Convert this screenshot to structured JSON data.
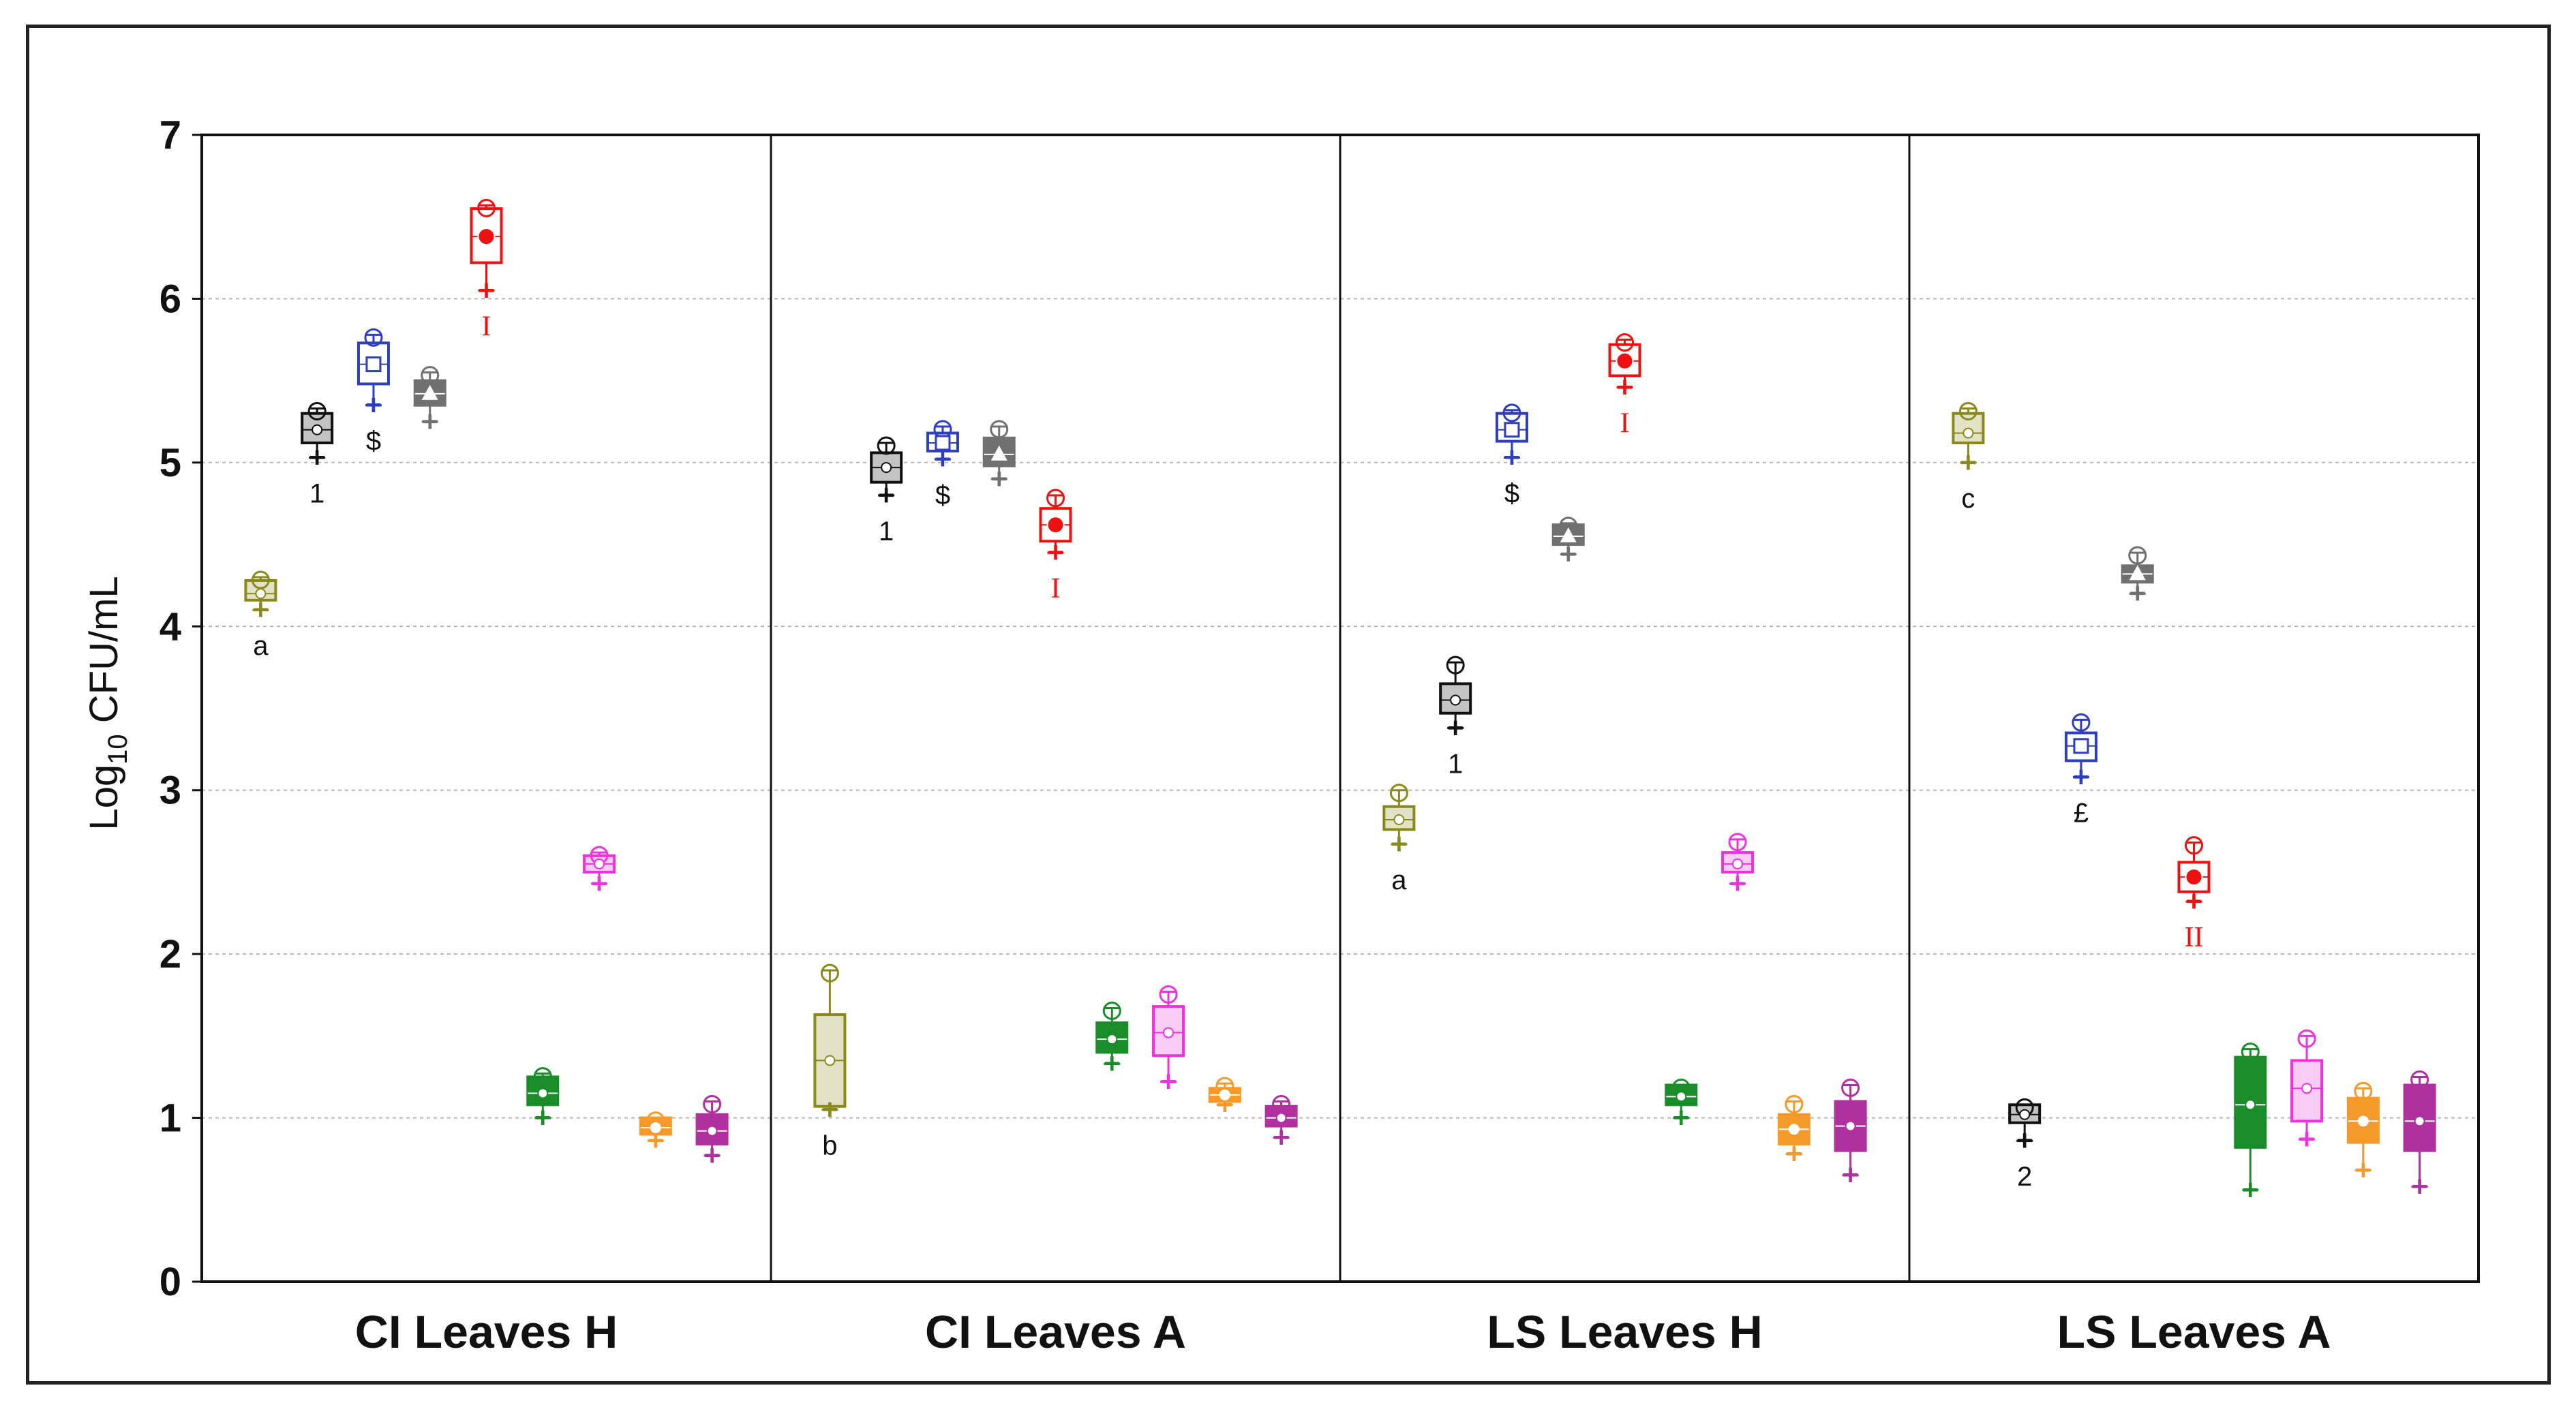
{
  "chart_data": {
    "type": "box",
    "ylabel": {
      "prefix": "Log",
      "sub": "10",
      "suffix": " CFU/mL"
    },
    "ylim": [
      0,
      7
    ],
    "yticks": [
      "0",
      "1",
      "2",
      "3",
      "4",
      "5",
      "6",
      "7"
    ],
    "grid": true,
    "colors": [
      "#8a8a1a",
      "#111111",
      "#2f3dbf",
      "#707070",
      "#ee1111",
      "#1a8c2a",
      "#ee33dd",
      "#f59a2a",
      "#b0309f"
    ],
    "panels": [
      {
        "name": "CI Leaves H",
        "boxes": [
          {
            "median": 4.2,
            "q1": 4.16,
            "q3": 4.28,
            "mean": 4.2,
            "min": 4.1,
            "max": 4.3,
            "label": "a"
          },
          {
            "median": 5.2,
            "q1": 5.12,
            "q3": 5.3,
            "mean": 5.2,
            "min": 5.03,
            "max": 5.33,
            "label": "1"
          },
          {
            "median": 5.6,
            "q1": 5.48,
            "q3": 5.73,
            "mean": 5.6,
            "min": 5.35,
            "max": 5.78,
            "label": "$"
          },
          {
            "median": 5.42,
            "q1": 5.35,
            "q3": 5.5,
            "mean": 5.42,
            "min": 5.25,
            "max": 5.55,
            "label": ""
          },
          {
            "median": 6.38,
            "q1": 6.22,
            "q3": 6.55,
            "mean": 6.38,
            "min": 6.05,
            "max": 6.57,
            "label": "I"
          },
          {
            "median": 1.15,
            "q1": 1.08,
            "q3": 1.25,
            "mean": 1.15,
            "min": 1.0,
            "max": 1.27,
            "label": ""
          },
          {
            "median": 2.55,
            "q1": 2.5,
            "q3": 2.6,
            "mean": 2.55,
            "min": 2.43,
            "max": 2.62,
            "label": ""
          },
          {
            "median": 0.94,
            "q1": 0.9,
            "q3": 1.0,
            "mean": 0.94,
            "min": 0.86,
            "max": 1.0,
            "label": ""
          },
          {
            "median": 0.92,
            "q1": 0.84,
            "q3": 1.02,
            "mean": 0.92,
            "min": 0.77,
            "max": 1.1,
            "label": ""
          }
        ]
      },
      {
        "name": "CI Leaves A",
        "boxes": [
          {
            "median": 1.35,
            "q1": 1.07,
            "q3": 1.63,
            "mean": 1.35,
            "min": 1.05,
            "max": 1.9,
            "label": "b"
          },
          {
            "median": 4.97,
            "q1": 4.88,
            "q3": 5.06,
            "mean": 4.97,
            "min": 4.8,
            "max": 5.12,
            "label": "1"
          },
          {
            "median": 5.12,
            "q1": 5.07,
            "q3": 5.18,
            "mean": 5.12,
            "min": 5.02,
            "max": 5.22,
            "label": "$"
          },
          {
            "median": 5.05,
            "q1": 4.98,
            "q3": 5.15,
            "mean": 5.05,
            "min": 4.9,
            "max": 5.22,
            "label": ""
          },
          {
            "median": 4.62,
            "q1": 4.52,
            "q3": 4.72,
            "mean": 4.62,
            "min": 4.45,
            "max": 4.8,
            "label": "I"
          },
          {
            "median": 1.48,
            "q1": 1.4,
            "q3": 1.58,
            "mean": 1.48,
            "min": 1.33,
            "max": 1.67,
            "label": ""
          },
          {
            "median": 1.52,
            "q1": 1.38,
            "q3": 1.68,
            "mean": 1.52,
            "min": 1.22,
            "max": 1.77,
            "label": ""
          },
          {
            "median": 1.14,
            "q1": 1.1,
            "q3": 1.18,
            "mean": 1.14,
            "min": 1.08,
            "max": 1.21,
            "label": ""
          },
          {
            "median": 1.0,
            "q1": 0.95,
            "q3": 1.07,
            "mean": 1.0,
            "min": 0.88,
            "max": 1.1,
            "label": ""
          }
        ]
      },
      {
        "name": "LS Leaves H",
        "boxes": [
          {
            "median": 2.82,
            "q1": 2.76,
            "q3": 2.9,
            "mean": 2.82,
            "min": 2.67,
            "max": 3.0,
            "label": "a"
          },
          {
            "median": 3.55,
            "q1": 3.47,
            "q3": 3.65,
            "mean": 3.55,
            "min": 3.38,
            "max": 3.78,
            "label": "1"
          },
          {
            "median": 5.2,
            "q1": 5.13,
            "q3": 5.3,
            "mean": 5.2,
            "min": 5.03,
            "max": 5.32,
            "label": "$"
          },
          {
            "median": 4.55,
            "q1": 4.5,
            "q3": 4.62,
            "mean": 4.55,
            "min": 4.44,
            "max": 4.63,
            "label": ""
          },
          {
            "median": 5.62,
            "q1": 5.53,
            "q3": 5.72,
            "mean": 5.62,
            "min": 5.46,
            "max": 5.75,
            "label": "I"
          },
          {
            "median": 1.13,
            "q1": 1.08,
            "q3": 1.2,
            "mean": 1.13,
            "min": 1.0,
            "max": 1.2,
            "label": ""
          },
          {
            "median": 2.55,
            "q1": 2.5,
            "q3": 2.62,
            "mean": 2.55,
            "min": 2.43,
            "max": 2.7,
            "label": ""
          },
          {
            "median": 0.93,
            "q1": 0.84,
            "q3": 1.02,
            "mean": 0.93,
            "min": 0.78,
            "max": 1.1,
            "label": ""
          },
          {
            "median": 0.95,
            "q1": 0.8,
            "q3": 1.1,
            "mean": 0.95,
            "min": 0.65,
            "max": 1.2,
            "label": ""
          }
        ]
      },
      {
        "name": "LS Leaves A",
        "boxes": [
          {
            "median": 5.18,
            "q1": 5.12,
            "q3": 5.3,
            "mean": 5.18,
            "min": 5.0,
            "max": 5.33,
            "label": "c"
          },
          {
            "median": 1.02,
            "q1": 0.97,
            "q3": 1.08,
            "mean": 1.02,
            "min": 0.86,
            "max": 1.08,
            "label": "2"
          },
          {
            "median": 3.27,
            "q1": 3.18,
            "q3": 3.35,
            "mean": 3.27,
            "min": 3.08,
            "max": 3.43,
            "label": "£"
          },
          {
            "median": 4.32,
            "q1": 4.27,
            "q3": 4.37,
            "mean": 4.32,
            "min": 4.2,
            "max": 4.45,
            "label": ""
          },
          {
            "median": 2.47,
            "q1": 2.38,
            "q3": 2.56,
            "mean": 2.47,
            "min": 2.32,
            "max": 2.68,
            "label": "II"
          },
          {
            "median": 1.08,
            "q1": 0.82,
            "q3": 1.37,
            "mean": 1.08,
            "min": 0.56,
            "max": 1.42,
            "label": ""
          },
          {
            "median": 1.18,
            "q1": 0.98,
            "q3": 1.35,
            "mean": 1.18,
            "min": 0.87,
            "max": 1.5,
            "label": ""
          },
          {
            "median": 0.98,
            "q1": 0.85,
            "q3": 1.12,
            "mean": 0.98,
            "min": 0.68,
            "max": 1.18,
            "label": ""
          },
          {
            "median": 0.98,
            "q1": 0.8,
            "q3": 1.2,
            "mean": 0.98,
            "min": 0.58,
            "max": 1.25,
            "label": ""
          }
        ]
      }
    ]
  }
}
